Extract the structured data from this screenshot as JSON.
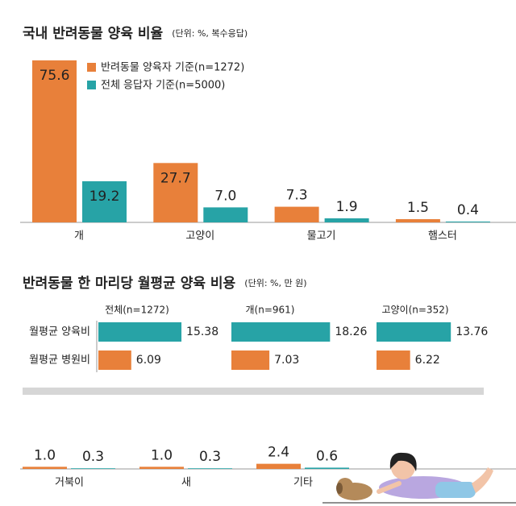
{
  "chart_data": [
    {
      "type": "bar",
      "orientation": "vertical",
      "title": "국내 반려동물 양육 비율",
      "subtitle": "(단위: %, 복수응답)",
      "categories": [
        "개",
        "고양이",
        "물고기",
        "햄스터",
        "거북이",
        "새",
        "기타"
      ],
      "series": [
        {
          "name": "반려동물 양육자 기준(n=1272)",
          "color": "#e8803a",
          "values": [
            75.6,
            27.7,
            7.3,
            1.5,
            1.0,
            1.0,
            2.4
          ],
          "value_labels": [
            "75.6",
            "27.7",
            "7.3",
            "1.5",
            "1.0",
            "1.0",
            "2.4"
          ]
        },
        {
          "name": "전체 응답자 기준(n=5000)",
          "color": "#27a3a6",
          "values": [
            19.2,
            7.0,
            1.9,
            0.4,
            0.3,
            0.3,
            0.6
          ],
          "value_labels": [
            "19.2",
            "7.0",
            "1.9",
            "0.4",
            "0.3",
            "0.3",
            "0.6"
          ]
        }
      ]
    },
    {
      "type": "bar",
      "orientation": "horizontal",
      "title": "반려동물 한 마리당 월평균 양육 비용",
      "subtitle": "(단위: %, 만 원)",
      "categories": [
        "월평균 양육비",
        "월평균 병원비"
      ],
      "colors": [
        "#27a3a6",
        "#e8803a"
      ],
      "panels": [
        {
          "name": "전체(n=1272)",
          "values": [
            15.38,
            6.09
          ]
        },
        {
          "name": "개(n=961)",
          "values": [
            18.26,
            7.03
          ]
        },
        {
          "name": "고양이(n=352)",
          "values": [
            13.76,
            6.22
          ]
        }
      ]
    }
  ]
}
